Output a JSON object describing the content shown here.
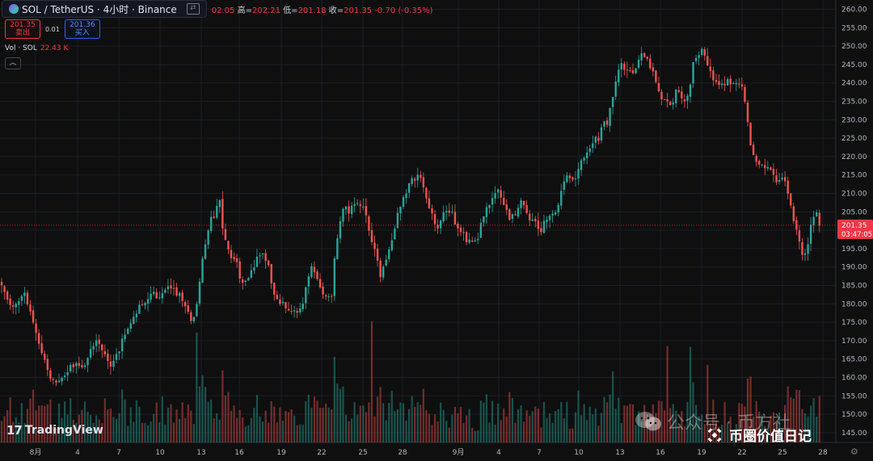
{
  "header": {
    "symbol": "SOL / TetherUS · 4小时 · Binance",
    "ohlc_tail": "02.05",
    "high_label": "高=",
    "high": "202.21",
    "low_label": "低=",
    "low": "201.18",
    "close_label": "收=",
    "close": "201.35",
    "change": "-0.70 (-0.35%)"
  },
  "trade": {
    "sell_price": "201.35",
    "sell_label": "卖出",
    "spread": "0.01",
    "buy_price": "201.36",
    "buy_label": "买入"
  },
  "volume": {
    "label": "Vol · SOL",
    "value": "22.43 K"
  },
  "last_price": {
    "price": "201.35",
    "countdown": "03:47:05"
  },
  "branding": {
    "tradingview": "TradingView",
    "watermark": "公众号 · 币方社",
    "channel": "币圈价值日记"
  },
  "colors": {
    "up": "#26a69a",
    "down": "#ef5350",
    "background": "#0f0f0f",
    "price_tag": "#f23645"
  },
  "chart_data": {
    "type": "candlestick",
    "symbol": "SOL/USDT",
    "y_ticks": [
      145,
      150,
      155,
      160,
      165,
      170,
      175,
      180,
      185,
      190,
      195,
      200,
      205,
      210,
      215,
      220,
      225,
      230,
      235,
      240,
      245,
      250,
      255,
      260
    ],
    "ylim": [
      143,
      261
    ],
    "x_ticks": [
      "8月",
      "4",
      "7",
      "10",
      "13",
      "16",
      "19",
      "22",
      "25",
      "28",
      "9月",
      "4",
      "7",
      "10",
      "13",
      "16",
      "19",
      "22",
      "25",
      "28"
    ],
    "last_price": 201.35,
    "price_path": [
      [
        0,
        186
      ],
      [
        6,
        182
      ],
      [
        14,
        179
      ],
      [
        22,
        181
      ],
      [
        30,
        183
      ],
      [
        38,
        178
      ],
      [
        46,
        170
      ],
      [
        54,
        166
      ],
      [
        62,
        160
      ],
      [
        70,
        158
      ],
      [
        78,
        161
      ],
      [
        86,
        163
      ],
      [
        94,
        164
      ],
      [
        102,
        163
      ],
      [
        110,
        166
      ],
      [
        118,
        170
      ],
      [
        126,
        168
      ],
      [
        134,
        163
      ],
      [
        142,
        165
      ],
      [
        150,
        169
      ],
      [
        158,
        174
      ],
      [
        166,
        177
      ],
      [
        174,
        180
      ],
      [
        182,
        181
      ],
      [
        190,
        183
      ],
      [
        198,
        181
      ],
      [
        206,
        185
      ],
      [
        214,
        184
      ],
      [
        222,
        182
      ],
      [
        230,
        178
      ],
      [
        236,
        176
      ],
      [
        242,
        178
      ],
      [
        248,
        189
      ],
      [
        254,
        196
      ],
      [
        260,
        202
      ],
      [
        266,
        205
      ],
      [
        272,
        208
      ],
      [
        276,
        200
      ],
      [
        280,
        195
      ],
      [
        286,
        192
      ],
      [
        292,
        192
      ],
      [
        298,
        185
      ],
      [
        304,
        187
      ],
      [
        310,
        188
      ],
      [
        318,
        192
      ],
      [
        326,
        193
      ],
      [
        332,
        190
      ],
      [
        340,
        182
      ],
      [
        348,
        180
      ],
      [
        356,
        179
      ],
      [
        364,
        178
      ],
      [
        370,
        177
      ],
      [
        376,
        182
      ],
      [
        382,
        188
      ],
      [
        388,
        190
      ],
      [
        394,
        186
      ],
      [
        400,
        183
      ],
      [
        406,
        182
      ],
      [
        410,
        182
      ],
      [
        414,
        193
      ],
      [
        420,
        201
      ],
      [
        426,
        206
      ],
      [
        432,
        205
      ],
      [
        440,
        208
      ],
      [
        446,
        207
      ],
      [
        452,
        204
      ],
      [
        458,
        199
      ],
      [
        464,
        194
      ],
      [
        470,
        188
      ],
      [
        476,
        190
      ],
      [
        482,
        195
      ],
      [
        488,
        201
      ],
      [
        494,
        205
      ],
      [
        500,
        209
      ],
      [
        506,
        212
      ],
      [
        512,
        214
      ],
      [
        518,
        215
      ],
      [
        524,
        211
      ],
      [
        530,
        206
      ],
      [
        536,
        203
      ],
      [
        542,
        201
      ],
      [
        548,
        204
      ],
      [
        554,
        205
      ],
      [
        560,
        204
      ],
      [
        566,
        200
      ],
      [
        572,
        200
      ],
      [
        578,
        197
      ],
      [
        584,
        196
      ],
      [
        590,
        197
      ],
      [
        596,
        203
      ],
      [
        602,
        206
      ],
      [
        608,
        209
      ],
      [
        614,
        211
      ],
      [
        620,
        209
      ],
      [
        626,
        205
      ],
      [
        632,
        203
      ],
      [
        638,
        205
      ],
      [
        644,
        208
      ],
      [
        650,
        205
      ],
      [
        656,
        203
      ],
      [
        662,
        202
      ],
      [
        668,
        200
      ],
      [
        674,
        202
      ],
      [
        680,
        204
      ],
      [
        686,
        205
      ],
      [
        692,
        208
      ],
      [
        698,
        214
      ],
      [
        704,
        215
      ],
      [
        710,
        213
      ],
      [
        716,
        217
      ],
      [
        722,
        220
      ],
      [
        728,
        222
      ],
      [
        734,
        224
      ],
      [
        740,
        225
      ],
      [
        746,
        228
      ],
      [
        752,
        230
      ],
      [
        758,
        236
      ],
      [
        764,
        242
      ],
      [
        770,
        245
      ],
      [
        776,
        244
      ],
      [
        782,
        242
      ],
      [
        788,
        246
      ],
      [
        794,
        249
      ],
      [
        800,
        246
      ],
      [
        806,
        243
      ],
      [
        812,
        240
      ],
      [
        818,
        236
      ],
      [
        824,
        235
      ],
      [
        830,
        234
      ],
      [
        836,
        238
      ],
      [
        842,
        236
      ],
      [
        848,
        235
      ],
      [
        854,
        240
      ],
      [
        858,
        246
      ],
      [
        864,
        248
      ],
      [
        870,
        249
      ],
      [
        876,
        245
      ],
      [
        882,
        240
      ],
      [
        888,
        239
      ],
      [
        894,
        239
      ],
      [
        900,
        240
      ],
      [
        906,
        241
      ],
      [
        912,
        240
      ],
      [
        918,
        238
      ],
      [
        924,
        231
      ],
      [
        930,
        220
      ],
      [
        936,
        218
      ],
      [
        942,
        219
      ],
      [
        948,
        217
      ],
      [
        954,
        216
      ],
      [
        960,
        213
      ],
      [
        966,
        215
      ],
      [
        972,
        212
      ],
      [
        978,
        206
      ],
      [
        984,
        201
      ],
      [
        988,
        197
      ],
      [
        992,
        194
      ],
      [
        996,
        193
      ],
      [
        1000,
        196
      ],
      [
        1004,
        202
      ],
      [
        1008,
        205
      ],
      [
        1012,
        203
      ],
      [
        1014,
        201.35
      ]
    ]
  }
}
